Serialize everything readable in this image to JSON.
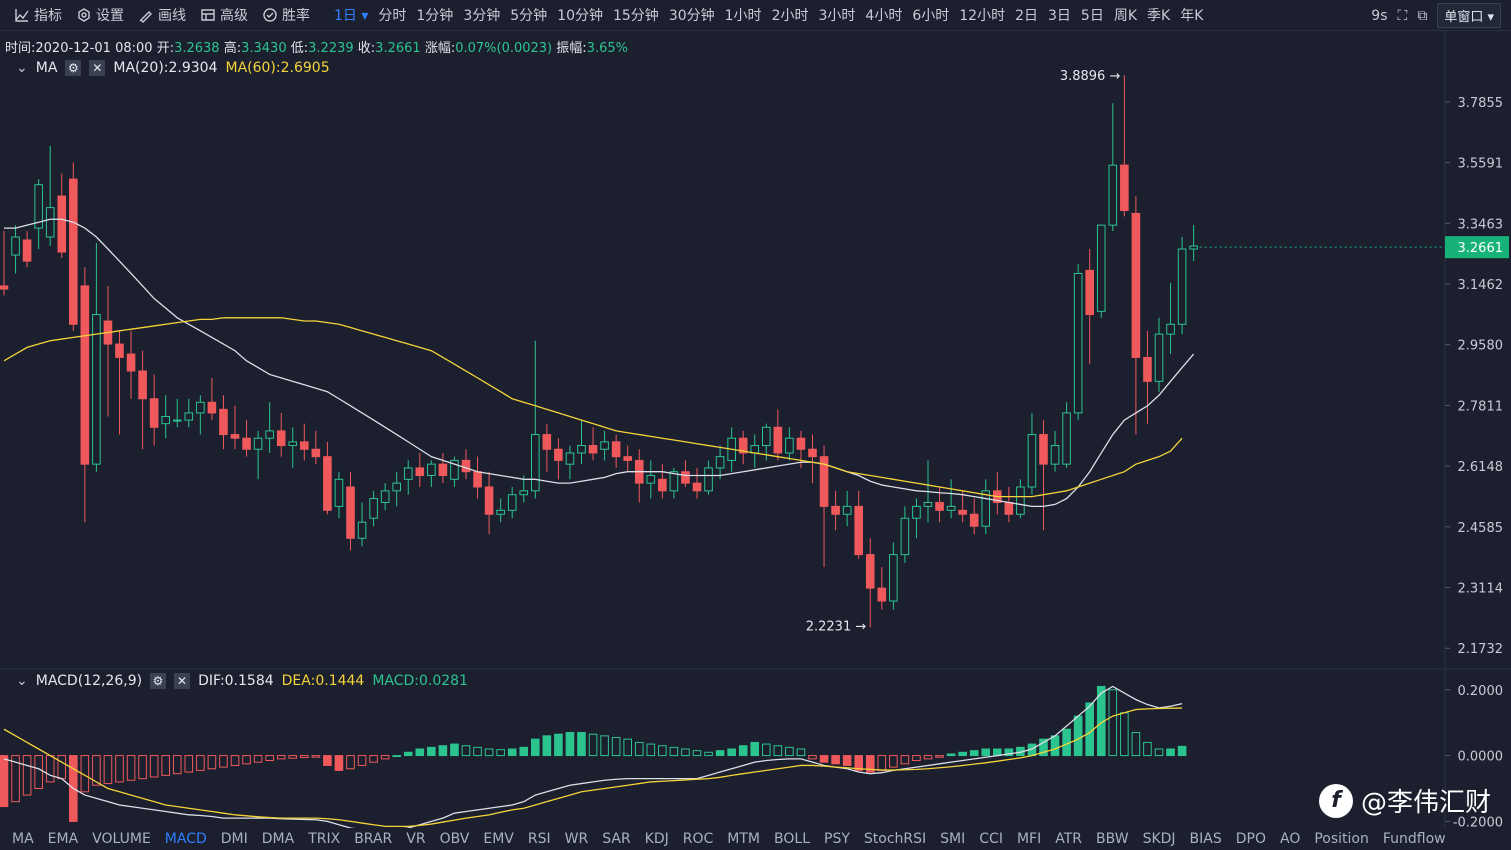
{
  "toolbar": {
    "tools": [
      {
        "label": "指标",
        "icon": "indicator-icon"
      },
      {
        "label": "设置",
        "icon": "settings-icon"
      },
      {
        "label": "画线",
        "icon": "draw-line-icon"
      },
      {
        "label": "高级",
        "icon": "advanced-icon"
      },
      {
        "label": "胜率",
        "icon": "winrate-icon"
      }
    ],
    "intervals": [
      "1日",
      "分时",
      "1分钟",
      "3分钟",
      "5分钟",
      "10分钟",
      "15分钟",
      "30分钟",
      "1小时",
      "2小时",
      "3小时",
      "4小时",
      "6小时",
      "12小时",
      "2日",
      "3日",
      "5日",
      "周K",
      "季K",
      "年K"
    ],
    "active_interval": "1日",
    "refresh": "9s",
    "window_mode": "单窗口"
  },
  "info": {
    "time_label": "时间:",
    "time": "2020-12-01 08:00",
    "open_label": "开:",
    "open": "3.2638",
    "high_label": "高:",
    "high": "3.3430",
    "low_label": "低:",
    "low": "3.2239",
    "close_label": "收:",
    "close": "3.2661",
    "change_label": "涨幅:",
    "change": "0.07%(0.0023)",
    "amp_label": "振幅:",
    "amp": "3.65%"
  },
  "ma_legend": {
    "name": "MA",
    "ma20": "MA(20):2.9304",
    "ma60": "MA(60):2.6905"
  },
  "macd_legend": {
    "name": "MACD(12,26,9)",
    "dif": "DIF:0.1584",
    "dea": "DEA:0.1444",
    "macd": "MACD:0.0281"
  },
  "colors": {
    "up": "#2bc48e",
    "down": "#f0595b",
    "ma20": "#dcdfe6",
    "ma60": "#f5d43a",
    "bg": "#1b1f2e",
    "price_tag": "#17b27a"
  },
  "bottom_tabs": [
    "MA",
    "EMA",
    "VOLUME",
    "MACD",
    "DMI",
    "DMA",
    "TRIX",
    "BRAR",
    "VR",
    "OBV",
    "EMV",
    "RSI",
    "WR",
    "SAR",
    "KDJ",
    "ROC",
    "MTM",
    "BOLL",
    "PSY",
    "StochRSI",
    "SMI",
    "CCI",
    "MFI",
    "ATR",
    "BBW",
    "SKDJ",
    "BIAS",
    "DPO",
    "AO",
    "Position",
    "Fundflow"
  ],
  "active_tab": "MACD",
  "watermark": "@李伟汇财",
  "chart_data": {
    "type": "candlestick",
    "price_axis": [
      "3.7855",
      "3.5591",
      "3.3463",
      "3.1462",
      "2.9580",
      "2.7811",
      "2.6148",
      "2.4585",
      "2.3114",
      "2.1732"
    ],
    "price_axis_scale": "log",
    "current_price": "3.2661",
    "max_label": "3.8896",
    "min_label": "2.2231",
    "macd_axis": [
      "0.2000",
      "0.0000",
      "-0.2000"
    ],
    "candles": [
      [
        3.14,
        3.32,
        3.11,
        3.13
      ],
      [
        3.24,
        3.34,
        3.18,
        3.3
      ],
      [
        3.29,
        3.32,
        3.2,
        3.22
      ],
      [
        3.33,
        3.5,
        3.26,
        3.48
      ],
      [
        3.3,
        3.62,
        3.27,
        3.4
      ],
      [
        3.44,
        3.52,
        3.23,
        3.25
      ],
      [
        3.5,
        3.56,
        3.0,
        3.02
      ],
      [
        3.14,
        3.2,
        2.47,
        2.62
      ],
      [
        2.62,
        3.28,
        2.6,
        3.05
      ],
      [
        3.03,
        3.14,
        2.75,
        2.96
      ],
      [
        2.96,
        3.0,
        2.7,
        2.92
      ],
      [
        2.93,
        3.0,
        2.8,
        2.88
      ],
      [
        2.88,
        2.94,
        2.66,
        2.8
      ],
      [
        2.8,
        2.87,
        2.67,
        2.72
      ],
      [
        2.73,
        2.81,
        2.69,
        2.75
      ],
      [
        2.74,
        2.8,
        2.72,
        2.74
      ],
      [
        2.74,
        2.8,
        2.72,
        2.76
      ],
      [
        2.76,
        2.81,
        2.7,
        2.79
      ],
      [
        2.79,
        2.86,
        2.74,
        2.76
      ],
      [
        2.77,
        2.81,
        2.66,
        2.7
      ],
      [
        2.7,
        2.78,
        2.66,
        2.69
      ],
      [
        2.69,
        2.74,
        2.64,
        2.66
      ],
      [
        2.66,
        2.71,
        2.58,
        2.69
      ],
      [
        2.69,
        2.79,
        2.65,
        2.71
      ],
      [
        2.71,
        2.76,
        2.64,
        2.67
      ],
      [
        2.67,
        2.72,
        2.61,
        2.68
      ],
      [
        2.68,
        2.73,
        2.63,
        2.66
      ],
      [
        2.66,
        2.71,
        2.62,
        2.64
      ],
      [
        2.64,
        2.68,
        2.49,
        2.5
      ],
      [
        2.51,
        2.6,
        2.48,
        2.58
      ],
      [
        2.56,
        2.6,
        2.4,
        2.43
      ],
      [
        2.43,
        2.52,
        2.41,
        2.47
      ],
      [
        2.48,
        2.55,
        2.46,
        2.53
      ],
      [
        2.52,
        2.57,
        2.5,
        2.55
      ],
      [
        2.55,
        2.6,
        2.51,
        2.57
      ],
      [
        2.58,
        2.63,
        2.54,
        2.61
      ],
      [
        2.61,
        2.65,
        2.56,
        2.59
      ],
      [
        2.59,
        2.63,
        2.56,
        2.62
      ],
      [
        2.62,
        2.65,
        2.57,
        2.59
      ],
      [
        2.58,
        2.64,
        2.56,
        2.63
      ],
      [
        2.63,
        2.66,
        2.58,
        2.6
      ],
      [
        2.6,
        2.64,
        2.53,
        2.56
      ],
      [
        2.56,
        2.6,
        2.44,
        2.49
      ],
      [
        2.49,
        2.53,
        2.47,
        2.5
      ],
      [
        2.5,
        2.56,
        2.48,
        2.54
      ],
      [
        2.54,
        2.59,
        2.52,
        2.55
      ],
      [
        2.55,
        2.97,
        2.53,
        2.7
      ],
      [
        2.7,
        2.73,
        2.6,
        2.66
      ],
      [
        2.66,
        2.69,
        2.58,
        2.63
      ],
      [
        2.62,
        2.67,
        2.58,
        2.65
      ],
      [
        2.65,
        2.74,
        2.62,
        2.67
      ],
      [
        2.67,
        2.72,
        2.63,
        2.65
      ],
      [
        2.66,
        2.71,
        2.63,
        2.68
      ],
      [
        2.68,
        2.7,
        2.61,
        2.64
      ],
      [
        2.64,
        2.67,
        2.6,
        2.63
      ],
      [
        2.63,
        2.66,
        2.52,
        2.57
      ],
      [
        2.57,
        2.63,
        2.53,
        2.59
      ],
      [
        2.58,
        2.62,
        2.53,
        2.55
      ],
      [
        2.55,
        2.61,
        2.53,
        2.6
      ],
      [
        2.6,
        2.63,
        2.56,
        2.57
      ],
      [
        2.57,
        2.61,
        2.53,
        2.55
      ],
      [
        2.55,
        2.63,
        2.54,
        2.61
      ],
      [
        2.61,
        2.67,
        2.58,
        2.64
      ],
      [
        2.63,
        2.72,
        2.6,
        2.69
      ],
      [
        2.69,
        2.71,
        2.62,
        2.65
      ],
      [
        2.65,
        2.7,
        2.61,
        2.67
      ],
      [
        2.67,
        2.73,
        2.63,
        2.72
      ],
      [
        2.72,
        2.77,
        2.63,
        2.65
      ],
      [
        2.65,
        2.72,
        2.63,
        2.69
      ],
      [
        2.69,
        2.71,
        2.61,
        2.66
      ],
      [
        2.66,
        2.7,
        2.57,
        2.64
      ],
      [
        2.64,
        2.67,
        2.36,
        2.51
      ],
      [
        2.51,
        2.55,
        2.45,
        2.49
      ],
      [
        2.49,
        2.55,
        2.46,
        2.51
      ],
      [
        2.51,
        2.55,
        2.38,
        2.39
      ],
      [
        2.39,
        2.43,
        2.22,
        2.31
      ],
      [
        2.31,
        2.36,
        2.26,
        2.28
      ],
      [
        2.28,
        2.42,
        2.26,
        2.39
      ],
      [
        2.39,
        2.51,
        2.37,
        2.48
      ],
      [
        2.48,
        2.53,
        2.43,
        2.51
      ],
      [
        2.51,
        2.63,
        2.47,
        2.52
      ],
      [
        2.52,
        2.56,
        2.47,
        2.5
      ],
      [
        2.5,
        2.58,
        2.48,
        2.51
      ],
      [
        2.5,
        2.55,
        2.47,
        2.49
      ],
      [
        2.49,
        2.53,
        2.44,
        2.46
      ],
      [
        2.46,
        2.58,
        2.44,
        2.55
      ],
      [
        2.55,
        2.6,
        2.49,
        2.52
      ],
      [
        2.52,
        2.56,
        2.47,
        2.49
      ],
      [
        2.49,
        2.58,
        2.48,
        2.56
      ],
      [
        2.56,
        2.76,
        2.54,
        2.7
      ],
      [
        2.7,
        2.74,
        2.45,
        2.62
      ],
      [
        2.62,
        2.71,
        2.6,
        2.67
      ],
      [
        2.62,
        2.79,
        2.61,
        2.76
      ],
      [
        2.76,
        3.21,
        2.74,
        3.18
      ],
      [
        3.19,
        3.26,
        2.9,
        3.05
      ],
      [
        3.06,
        3.34,
        3.04,
        3.34
      ],
      [
        3.34,
        3.78,
        3.32,
        3.55
      ],
      [
        3.55,
        3.89,
        3.37,
        3.39
      ],
      [
        3.38,
        3.44,
        2.7,
        2.92
      ],
      [
        2.92,
        3.0,
        2.73,
        2.85
      ],
      [
        2.85,
        3.04,
        2.82,
        2.99
      ],
      [
        2.99,
        3.15,
        2.93,
        3.02
      ],
      [
        3.02,
        3.3,
        2.99,
        3.26
      ],
      [
        3.26,
        3.34,
        3.22,
        3.27
      ]
    ],
    "macd_hist": [
      -0.155,
      -0.14,
      -0.12,
      -0.1,
      -0.08,
      -0.07,
      -0.2,
      -0.11,
      -0.09,
      -0.085,
      -0.08,
      -0.075,
      -0.07,
      -0.065,
      -0.06,
      -0.055,
      -0.05,
      -0.045,
      -0.04,
      -0.035,
      -0.03,
      -0.025,
      -0.02,
      -0.015,
      -0.01,
      -0.008,
      -0.006,
      -0.005,
      -0.03,
      -0.045,
      -0.04,
      -0.03,
      -0.02,
      -0.01,
      0.0,
      0.01,
      0.02,
      0.025,
      0.03,
      0.035,
      0.03,
      0.025,
      0.02,
      0.018,
      0.02,
      0.025,
      0.05,
      0.06,
      0.065,
      0.07,
      0.07,
      0.065,
      0.06,
      0.055,
      0.05,
      0.04,
      0.035,
      0.03,
      0.025,
      0.02,
      0.015,
      0.01,
      0.015,
      0.02,
      0.03,
      0.04,
      0.035,
      0.03,
      0.025,
      0.02,
      -0.01,
      -0.02,
      -0.025,
      -0.03,
      -0.045,
      -0.05,
      -0.045,
      -0.035,
      -0.025,
      -0.015,
      -0.01,
      -0.005,
      0.005,
      0.01,
      0.015,
      0.02,
      0.02,
      0.02,
      0.025,
      0.035,
      0.05,
      0.06,
      0.08,
      0.12,
      0.16,
      0.21,
      0.2,
      0.13,
      0.07,
      0.04,
      0.02,
      0.02,
      0.028
    ],
    "dif": [
      -0.01,
      -0.02,
      -0.03,
      -0.04,
      -0.06,
      -0.07,
      -0.1,
      -0.12,
      -0.13,
      -0.14,
      -0.15,
      -0.155,
      -0.16,
      -0.165,
      -0.17,
      -0.175,
      -0.18,
      -0.182,
      -0.185,
      -0.19,
      -0.19,
      -0.19,
      -0.19,
      -0.19,
      -0.192,
      -0.193,
      -0.194,
      -0.195,
      -0.2,
      -0.21,
      -0.22,
      -0.225,
      -0.228,
      -0.228,
      -0.225,
      -0.22,
      -0.21,
      -0.2,
      -0.19,
      -0.175,
      -0.17,
      -0.165,
      -0.16,
      -0.155,
      -0.15,
      -0.14,
      -0.12,
      -0.11,
      -0.1,
      -0.09,
      -0.085,
      -0.08,
      -0.075,
      -0.072,
      -0.07,
      -0.07,
      -0.07,
      -0.07,
      -0.07,
      -0.07,
      -0.07,
      -0.06,
      -0.05,
      -0.04,
      -0.03,
      -0.02,
      -0.015,
      -0.012,
      -0.01,
      -0.01,
      -0.02,
      -0.03,
      -0.035,
      -0.04,
      -0.05,
      -0.055,
      -0.052,
      -0.045,
      -0.04,
      -0.035,
      -0.03,
      -0.025,
      -0.02,
      -0.015,
      -0.01,
      -0.005,
      0.0,
      0.005,
      0.01,
      0.02,
      0.04,
      0.06,
      0.09,
      0.12,
      0.15,
      0.19,
      0.21,
      0.19,
      0.17,
      0.155,
      0.145,
      0.15,
      0.158
    ],
    "dea": [
      0.08,
      0.06,
      0.04,
      0.02,
      0.0,
      -0.02,
      -0.04,
      -0.06,
      -0.08,
      -0.1,
      -0.11,
      -0.12,
      -0.13,
      -0.14,
      -0.15,
      -0.155,
      -0.16,
      -0.165,
      -0.17,
      -0.175,
      -0.18,
      -0.183,
      -0.186,
      -0.188,
      -0.19,
      -0.19,
      -0.19,
      -0.19,
      -0.192,
      -0.195,
      -0.2,
      -0.205,
      -0.21,
      -0.215,
      -0.215,
      -0.215,
      -0.212,
      -0.208,
      -0.202,
      -0.196,
      -0.19,
      -0.185,
      -0.18,
      -0.172,
      -0.165,
      -0.16,
      -0.15,
      -0.14,
      -0.13,
      -0.12,
      -0.11,
      -0.105,
      -0.1,
      -0.095,
      -0.09,
      -0.085,
      -0.08,
      -0.078,
      -0.076,
      -0.074,
      -0.072,
      -0.07,
      -0.066,
      -0.06,
      -0.055,
      -0.05,
      -0.045,
      -0.04,
      -0.035,
      -0.03,
      -0.03,
      -0.032,
      -0.035,
      -0.037,
      -0.04,
      -0.042,
      -0.044,
      -0.044,
      -0.043,
      -0.042,
      -0.04,
      -0.037,
      -0.034,
      -0.03,
      -0.026,
      -0.022,
      -0.017,
      -0.012,
      -0.007,
      0.0,
      0.01,
      0.02,
      0.035,
      0.05,
      0.07,
      0.1,
      0.12,
      0.13,
      0.14,
      0.142,
      0.143,
      0.144,
      0.1444
    ],
    "ma20": [
      3.33,
      3.33,
      3.34,
      3.35,
      3.36,
      3.36,
      3.35,
      3.33,
      3.3,
      3.26,
      3.22,
      3.18,
      3.14,
      3.1,
      3.07,
      3.04,
      3.02,
      3.0,
      2.98,
      2.96,
      2.94,
      2.91,
      2.89,
      2.87,
      2.86,
      2.85,
      2.84,
      2.83,
      2.82,
      2.8,
      2.78,
      2.76,
      2.74,
      2.72,
      2.7,
      2.68,
      2.66,
      2.64,
      2.63,
      2.62,
      2.61,
      2.6,
      2.595,
      2.59,
      2.585,
      2.58,
      2.58,
      2.575,
      2.57,
      2.57,
      2.575,
      2.58,
      2.585,
      2.595,
      2.6,
      2.6,
      2.6,
      2.6,
      2.595,
      2.59,
      2.59,
      2.59,
      2.59,
      2.595,
      2.6,
      2.605,
      2.61,
      2.615,
      2.62,
      2.625,
      2.625,
      2.62,
      2.61,
      2.6,
      2.59,
      2.575,
      2.565,
      2.56,
      2.555,
      2.55,
      2.548,
      2.545,
      2.543,
      2.54,
      2.535,
      2.53,
      2.525,
      2.52,
      2.515,
      2.51,
      2.51,
      2.515,
      2.53,
      2.56,
      2.6,
      2.65,
      2.7,
      2.74,
      2.76,
      2.78,
      2.81,
      2.85,
      2.89,
      2.93
    ],
    "ma60": [
      2.91,
      2.93,
      2.95,
      2.96,
      2.97,
      2.975,
      2.98,
      2.985,
      2.99,
      2.995,
      3.0,
      3.005,
      3.01,
      3.015,
      3.02,
      3.025,
      3.03,
      3.035,
      3.035,
      3.04,
      3.04,
      3.04,
      3.04,
      3.04,
      3.04,
      3.035,
      3.03,
      3.03,
      3.025,
      3.02,
      3.01,
      3.0,
      2.99,
      2.98,
      2.97,
      2.96,
      2.95,
      2.94,
      2.92,
      2.9,
      2.88,
      2.86,
      2.84,
      2.82,
      2.8,
      2.79,
      2.78,
      2.77,
      2.76,
      2.75,
      2.74,
      2.73,
      2.72,
      2.71,
      2.705,
      2.7,
      2.695,
      2.69,
      2.685,
      2.68,
      2.675,
      2.67,
      2.665,
      2.66,
      2.655,
      2.65,
      2.645,
      2.64,
      2.635,
      2.63,
      2.625,
      2.62,
      2.61,
      2.6,
      2.595,
      2.59,
      2.585,
      2.58,
      2.575,
      2.57,
      2.565,
      2.56,
      2.555,
      2.55,
      2.545,
      2.54,
      2.535,
      2.535,
      2.535,
      2.535,
      2.54,
      2.545,
      2.55,
      2.56,
      2.57,
      2.58,
      2.59,
      2.6,
      2.62,
      2.63,
      2.64,
      2.655,
      2.69
    ]
  }
}
